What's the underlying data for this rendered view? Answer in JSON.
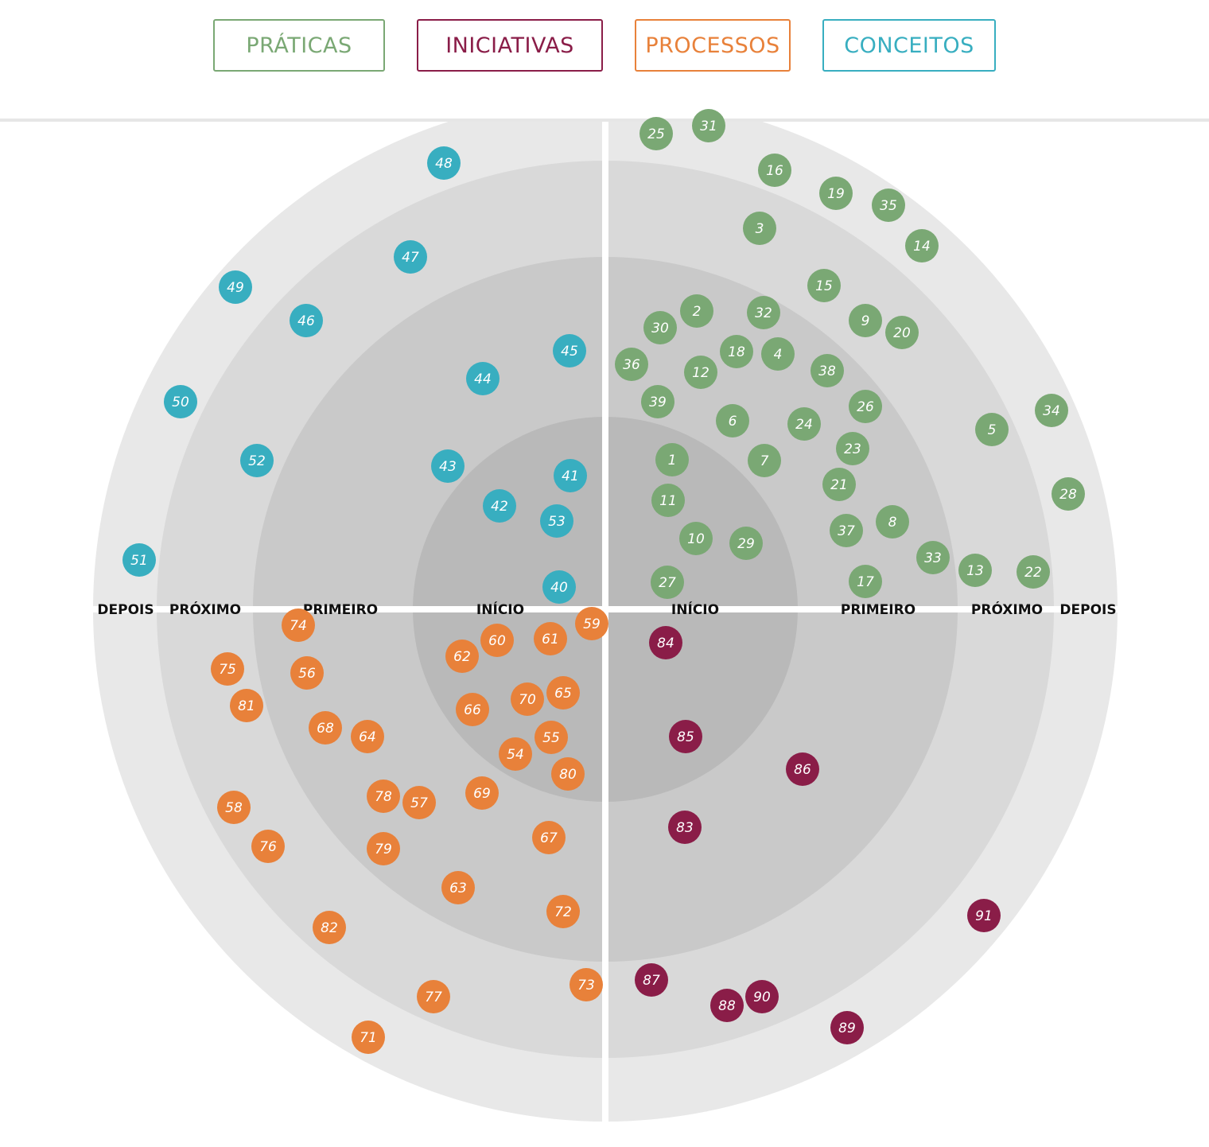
{
  "filters": [
    {
      "label": "PRÁTICAS",
      "color": "#7aa874"
    },
    {
      "label": "INICIATIVAS",
      "color": "#8a1d48"
    },
    {
      "label": "PROCESSOS",
      "color": "#e8813a"
    },
    {
      "label": "CONCEITOS",
      "color": "#38aec0"
    }
  ],
  "ring_labels": {
    "left": [
      "DEPOIS",
      "PRÓXIMO",
      "PRIMEIRO",
      "INÍCIO"
    ],
    "right": [
      "INÍCIO",
      "PRIMEIRO",
      "PRÓXIMO",
      "DEPOIS"
    ]
  },
  "ring_colors": [
    "#b9b9b9",
    "#c9c9c9",
    "#d9d9d9",
    "#e8e8e8"
  ],
  "quadrants": {
    "praticas": {
      "color": "#7aa874",
      "blips": [
        "25",
        "31",
        "16",
        "19",
        "35",
        "3",
        "14",
        "15",
        "2",
        "32",
        "30",
        "9",
        "20",
        "18",
        "4",
        "36",
        "12",
        "38",
        "39",
        "26",
        "6",
        "24",
        "34",
        "5",
        "1",
        "7",
        "23",
        "21",
        "28",
        "11",
        "8",
        "37",
        "10",
        "29",
        "33",
        "13",
        "22",
        "27",
        "17"
      ]
    },
    "conceitos": {
      "color": "#38aec0",
      "blips": [
        "48",
        "47",
        "49",
        "46",
        "45",
        "44",
        "50",
        "52",
        "43",
        "41",
        "42",
        "53",
        "51",
        "40"
      ]
    },
    "processos": {
      "color": "#e8813a",
      "blips": [
        "74",
        "59",
        "60",
        "61",
        "62",
        "75",
        "56",
        "81",
        "65",
        "70",
        "66",
        "68",
        "64",
        "55",
        "54",
        "80",
        "69",
        "78",
        "57",
        "58",
        "67",
        "76",
        "79",
        "63",
        "72",
        "82",
        "73",
        "77",
        "71"
      ]
    },
    "iniciativas": {
      "color": "#8a1d48",
      "blips": [
        "84",
        "85",
        "86",
        "83",
        "91",
        "87",
        "90",
        "88",
        "89"
      ]
    }
  }
}
